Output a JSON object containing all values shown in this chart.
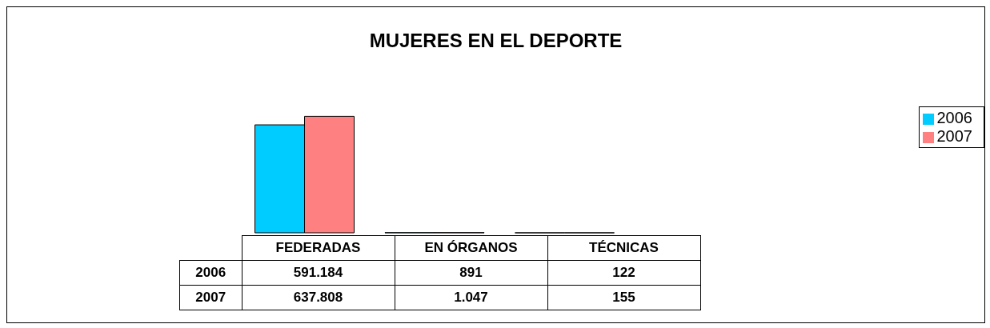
{
  "chart_data": {
    "type": "bar",
    "title": "MUJERES EN EL DEPORTE",
    "categories": [
      "FEDERADAS",
      "EN ÓRGANOS",
      "TÉCNICAS"
    ],
    "series": [
      {
        "name": "2006",
        "color": "#00ccff",
        "values": [
          591184,
          891,
          122
        ],
        "value_labels": [
          "591.184",
          "891",
          "122"
        ]
      },
      {
        "name": "2007",
        "color": "#ff8080",
        "values": [
          637808,
          1047,
          155
        ],
        "value_labels": [
          "637.808",
          "1.047",
          "155"
        ]
      }
    ],
    "legend": "right",
    "grid": false
  }
}
